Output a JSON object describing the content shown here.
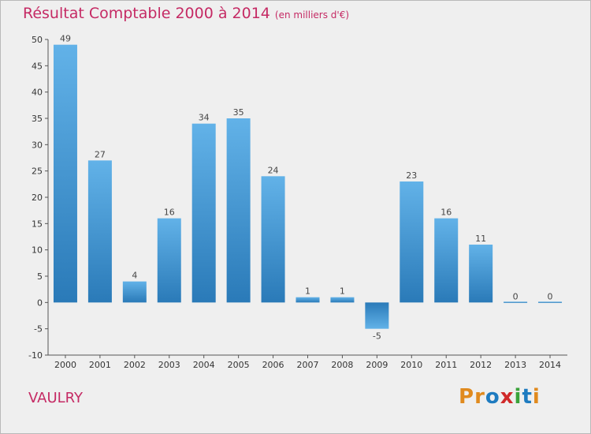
{
  "header": {
    "title": "Résultat Comptable 2000 à 2014",
    "unit": "(en milliers d'€)"
  },
  "commune": "VAULRY",
  "logo": {
    "letters": [
      "P",
      "r",
      "o",
      "x",
      "i",
      "t",
      "i"
    ],
    "colors": [
      "#e08a1e",
      "#e08a1e",
      "#1e7bc0",
      "#d02a2a",
      "#3aa33a",
      "#1e7bc0",
      "#e08a1e"
    ]
  },
  "colors": {
    "title": "#c52a64",
    "bar_light": "#62b2e8",
    "bar_dark": "#2a7ab8",
    "axis": "#555555",
    "frame": "#efefef"
  },
  "chart_data": {
    "type": "bar",
    "title": "Résultat Comptable 2000 à 2014",
    "subtitle": "(en milliers d'€)",
    "xlabel": "",
    "ylabel": "",
    "categories": [
      "2000",
      "2001",
      "2002",
      "2003",
      "2004",
      "2005",
      "2006",
      "2007",
      "2008",
      "2009",
      "2010",
      "2011",
      "2012",
      "2013",
      "2014"
    ],
    "values": [
      49,
      27,
      4,
      16,
      34,
      35,
      24,
      1,
      1,
      -5,
      23,
      16,
      11,
      0,
      0
    ],
    "ylim": [
      -10,
      50
    ],
    "yticks": [
      -10,
      -5,
      0,
      5,
      10,
      15,
      20,
      25,
      30,
      35,
      40,
      45,
      50
    ],
    "grid": false,
    "legend": "none"
  }
}
